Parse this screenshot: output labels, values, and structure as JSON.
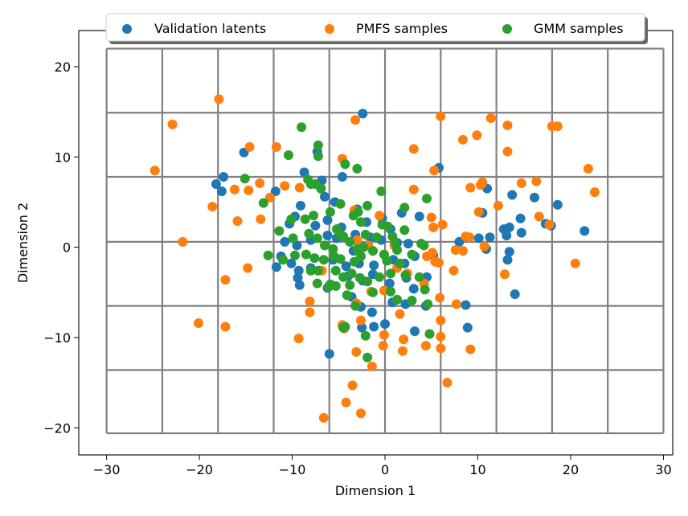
{
  "chart_data": {
    "type": "scatter",
    "title": "",
    "xlabel": "Dimension 1",
    "ylabel": "Dimension 2",
    "xlim": [
      -33,
      31
    ],
    "ylim": [
      -23,
      24
    ],
    "xticks": [
      -30,
      -20,
      -10,
      0,
      10,
      20,
      30
    ],
    "yticks": [
      -20,
      -10,
      0,
      10,
      20
    ],
    "grid": true,
    "grid_color": "#808080",
    "grid_vlines": [
      -30,
      -24,
      -18,
      -12,
      -6,
      0,
      6,
      12,
      18,
      24,
      30
    ],
    "grid_hlines": [
      -20.6,
      -13.6,
      -6.5,
      0.6,
      7.8,
      14.9,
      22.0
    ],
    "legend_position": "top-center",
    "legend": [
      "Validation latents",
      "PMFS samples",
      "GMM samples"
    ],
    "series": [
      {
        "name": "Validation latents",
        "color": "#1f77b4",
        "points": [
          [
            -2.4,
            14.8
          ],
          [
            -15.2,
            10.5
          ],
          [
            -7.3,
            10.6
          ],
          [
            -17.4,
            7.8
          ],
          [
            -18.2,
            7.0
          ],
          [
            -17.6,
            6.2
          ],
          [
            -11.8,
            6.2
          ],
          [
            -8.7,
            8.3
          ],
          [
            -6.8,
            7.4
          ],
          [
            -4.6,
            7.8
          ],
          [
            -6.5,
            5.6
          ],
          [
            -6.9,
            6.5
          ],
          [
            -5.4,
            5.0
          ],
          [
            -9.1,
            4.6
          ],
          [
            -9.7,
            3.4
          ],
          [
            -10.3,
            2.6
          ],
          [
            -7.5,
            2.4
          ],
          [
            -6.2,
            3.0
          ],
          [
            -4.7,
            2.2
          ],
          [
            -3.0,
            4.2
          ],
          [
            -2.0,
            2.8
          ],
          [
            -0.3,
            3.2
          ],
          [
            0.6,
            2.0
          ],
          [
            1.8,
            3.8
          ],
          [
            3.7,
            3.4
          ],
          [
            -10.8,
            0.6
          ],
          [
            -9.5,
            0.2
          ],
          [
            -8.0,
            0.8
          ],
          [
            -6.2,
            1.3
          ],
          [
            -5.2,
            1.0
          ],
          [
            -3.2,
            1.4
          ],
          [
            -1.6,
            1.1
          ],
          [
            -0.4,
            0.8
          ],
          [
            1.3,
            0.5
          ],
          [
            2.5,
            0.4
          ],
          [
            -11.2,
            -1.0
          ],
          [
            -10.1,
            -1.8
          ],
          [
            -9.3,
            -2.6
          ],
          [
            -8.0,
            -2.3
          ],
          [
            -5.6,
            -1.4
          ],
          [
            -4.2,
            -2.1
          ],
          [
            -2.8,
            -1.8
          ],
          [
            -1.2,
            -2.0
          ],
          [
            0.9,
            -1.4
          ],
          [
            2.1,
            -1.8
          ],
          [
            3.2,
            -1.0
          ],
          [
            -11.7,
            -2.2
          ],
          [
            -9.4,
            -3.4
          ],
          [
            -9.2,
            -4.2
          ],
          [
            -6.2,
            -4.5
          ],
          [
            -4.0,
            -3.2
          ],
          [
            -2.4,
            -3.7
          ],
          [
            -1.3,
            -3.0
          ],
          [
            0.5,
            -4.0
          ],
          [
            2.3,
            -3.4
          ],
          [
            4.5,
            -3.3
          ],
          [
            -3.6,
            -5.5
          ],
          [
            -2.6,
            -6.6
          ],
          [
            -1.4,
            -7.2
          ],
          [
            0.8,
            -6.1
          ],
          [
            2.2,
            -6.3
          ],
          [
            3.1,
            -4.6
          ],
          [
            -2.5,
            -8.9
          ],
          [
            -1.2,
            -8.8
          ],
          [
            0.0,
            -8.5
          ],
          [
            3.2,
            -9.3
          ],
          [
            -6.0,
            -11.8
          ],
          [
            5.8,
            8.8
          ],
          [
            8.7,
            -6.4
          ],
          [
            8.9,
            -8.9
          ],
          [
            8.0,
            0.6
          ],
          [
            10.1,
            1.0
          ],
          [
            10.5,
            3.8
          ],
          [
            11.0,
            6.5
          ],
          [
            11.3,
            1.1
          ],
          [
            12.8,
            2.0
          ],
          [
            13.1,
            1.3
          ],
          [
            13.4,
            2.2
          ],
          [
            13.7,
            5.8
          ],
          [
            14.6,
            3.2
          ],
          [
            14.7,
            1.6
          ],
          [
            14.0,
            -5.2
          ],
          [
            16.1,
            5.5
          ],
          [
            17.3,
            2.6
          ],
          [
            17.9,
            2.4
          ],
          [
            18.6,
            4.7
          ],
          [
            21.5,
            1.8
          ],
          [
            10.9,
            -0.2
          ],
          [
            13.4,
            -0.5
          ],
          [
            13.2,
            -1.4
          ],
          [
            -2.8,
            0.2
          ],
          [
            4.4,
            -6.5
          ],
          [
            5.2,
            -0.9
          ],
          [
            -3.4,
            -0.4
          ]
        ]
      },
      {
        "name": "PMFS samples",
        "color": "#ff7f0e",
        "points": [
          [
            -17.9,
            16.4
          ],
          [
            -22.9,
            13.6
          ],
          [
            -14.6,
            11.1
          ],
          [
            -11.7,
            11.1
          ],
          [
            -24.8,
            8.5
          ],
          [
            -18.6,
            4.5
          ],
          [
            -16.2,
            6.4
          ],
          [
            -14.7,
            6.3
          ],
          [
            -13.5,
            7.1
          ],
          [
            -12.4,
            5.5
          ],
          [
            -10.8,
            6.8
          ],
          [
            -9.2,
            6.6
          ],
          [
            -15.9,
            2.9
          ],
          [
            -13.4,
            3.1
          ],
          [
            -21.8,
            0.6
          ],
          [
            -14.8,
            -2.3
          ],
          [
            -17.2,
            -3.6
          ],
          [
            -20.1,
            -8.4
          ],
          [
            -17.2,
            -8.8
          ],
          [
            -9.3,
            -10.1
          ],
          [
            -8.1,
            -6.0
          ],
          [
            -8.1,
            -7.2
          ],
          [
            -4.6,
            9.8
          ],
          [
            -3.2,
            14.1
          ],
          [
            -0.6,
            3.5
          ],
          [
            1.0,
            0.2
          ],
          [
            1.3,
            -2.3
          ],
          [
            2.4,
            -2.9
          ],
          [
            3.1,
            10.9
          ],
          [
            3.1,
            6.4
          ],
          [
            5.0,
            3.3
          ],
          [
            5.2,
            2.2
          ],
          [
            6.2,
            2.5
          ],
          [
            6.0,
            14.5
          ],
          [
            9.9,
            12.4
          ],
          [
            11.4,
            14.3
          ],
          [
            13.2,
            13.5
          ],
          [
            13.2,
            10.6
          ],
          [
            5.3,
            8.5
          ],
          [
            8.4,
            11.9
          ],
          [
            10.3,
            6.9
          ],
          [
            10.5,
            7.2
          ],
          [
            9.2,
            6.6
          ],
          [
            10.1,
            3.9
          ],
          [
            12.2,
            4.6
          ],
          [
            8.7,
            1.2
          ],
          [
            9.1,
            1.1
          ],
          [
            10.7,
            0.1
          ],
          [
            7.6,
            -0.3
          ],
          [
            8.4,
            -0.4
          ],
          [
            7.4,
            -2.6
          ],
          [
            12.9,
            -3.0
          ],
          [
            14.7,
            7.1
          ],
          [
            16.3,
            7.3
          ],
          [
            16.6,
            3.4
          ],
          [
            17.7,
            2.5
          ],
          [
            18.0,
            13.4
          ],
          [
            18.6,
            13.4
          ],
          [
            21.9,
            8.7
          ],
          [
            22.6,
            6.1
          ],
          [
            20.5,
            -1.8
          ],
          [
            4.5,
            -1.0
          ],
          [
            5.1,
            -0.6
          ],
          [
            5.4,
            -1.6
          ],
          [
            5.8,
            -1.7
          ],
          [
            4.2,
            -4.0
          ],
          [
            5.9,
            -5.6
          ],
          [
            7.7,
            -6.3
          ],
          [
            6.0,
            -8.1
          ],
          [
            6.0,
            -9.9
          ],
          [
            6.0,
            -11.2
          ],
          [
            4.4,
            -10.9
          ],
          [
            2.0,
            -10.2
          ],
          [
            1.9,
            -11.5
          ],
          [
            1.6,
            -7.4
          ],
          [
            -0.1,
            -4.8
          ],
          [
            -1.5,
            -4.9
          ],
          [
            -3.1,
            -6.2
          ],
          [
            -2.6,
            -8.1
          ],
          [
            -4.6,
            -8.6
          ],
          [
            -4.4,
            -9.0
          ],
          [
            -0.1,
            -9.7
          ],
          [
            -0.2,
            -10.9
          ],
          [
            -1.4,
            -13.2
          ],
          [
            -3.1,
            -11.6
          ],
          [
            -3.5,
            -15.3
          ],
          [
            -4.2,
            -17.2
          ],
          [
            -2.6,
            -18.4
          ],
          [
            -6.6,
            -18.9
          ],
          [
            6.7,
            -15.0
          ],
          [
            9.2,
            -11.3
          ],
          [
            -6.8,
            -2.6
          ],
          [
            -3.3,
            4.1
          ],
          [
            -3.0,
            0.8
          ],
          [
            -1.8,
            0.2
          ]
        ]
      },
      {
        "name": "GMM samples",
        "color": "#2ca02c",
        "points": [
          [
            -9.0,
            13.3
          ],
          [
            -7.2,
            11.3
          ],
          [
            -10.4,
            10.2
          ],
          [
            -7.2,
            10.1
          ],
          [
            -15.1,
            7.6
          ],
          [
            -8.3,
            7.5
          ],
          [
            -8.0,
            7.0
          ],
          [
            -7.5,
            7.0
          ],
          [
            -6.9,
            6.5
          ],
          [
            -4.3,
            9.2
          ],
          [
            -3.0,
            8.7
          ],
          [
            -0.4,
            6.2
          ],
          [
            -13.1,
            4.9
          ],
          [
            -10.1,
            3.1
          ],
          [
            -7.7,
            3.5
          ],
          [
            -5.9,
            3.9
          ],
          [
            -4.8,
            4.8
          ],
          [
            -3.4,
            3.5
          ],
          [
            -2.9,
            3.9
          ],
          [
            -2.6,
            2.8
          ],
          [
            -1.9,
            4.6
          ],
          [
            -0.3,
            2.5
          ],
          [
            0.3,
            2.3
          ],
          [
            2.1,
            4.4
          ],
          [
            4.5,
            5.4
          ],
          [
            -11.4,
            1.8
          ],
          [
            -9.9,
            1.0
          ],
          [
            -8.2,
            1.5
          ],
          [
            -7.3,
            1.0
          ],
          [
            -5.2,
            2.0
          ],
          [
            -4.5,
            1.2
          ],
          [
            -3.8,
            0.6
          ],
          [
            -2.1,
            1.4
          ],
          [
            -0.9,
            1.1
          ],
          [
            0.8,
            1.2
          ],
          [
            2.1,
            1.9
          ],
          [
            3.9,
            0.4
          ],
          [
            -12.6,
            -0.9
          ],
          [
            -11.0,
            -1.4
          ],
          [
            -9.7,
            -0.9
          ],
          [
            -8.5,
            -0.8
          ],
          [
            -7.6,
            -1.2
          ],
          [
            -6.6,
            -1.4
          ],
          [
            -5.5,
            -1.0
          ],
          [
            -4.8,
            -1.3
          ],
          [
            -3.3,
            -1.6
          ],
          [
            -2.6,
            -1.0
          ],
          [
            -1.3,
            -0.4
          ],
          [
            -0.1,
            -0.8
          ],
          [
            1.3,
            -0.3
          ],
          [
            2.9,
            -0.8
          ],
          [
            4.2,
            0.2
          ],
          [
            -8.0,
            -2.6
          ],
          [
            -7.2,
            -2.6
          ],
          [
            -5.3,
            -2.6
          ],
          [
            -4.5,
            -3.3
          ],
          [
            -3.6,
            -2.9
          ],
          [
            -2.7,
            -3.4
          ],
          [
            -1.9,
            -3.8
          ],
          [
            -0.6,
            -3.3
          ],
          [
            0.6,
            -2.9
          ],
          [
            2.2,
            -3.1
          ],
          [
            3.7,
            -3.3
          ],
          [
            -7.3,
            -4.0
          ],
          [
            -6.1,
            -4.4
          ],
          [
            -5.3,
            -4.3
          ],
          [
            -3.8,
            -4.2
          ],
          [
            -1.3,
            -5.0
          ],
          [
            0.6,
            -4.9
          ],
          [
            1.3,
            -5.8
          ],
          [
            2.9,
            -5.9
          ],
          [
            4.3,
            -4.7
          ],
          [
            -3.2,
            -6.5
          ],
          [
            -4.3,
            -8.8
          ],
          [
            -2.1,
            -9.8
          ],
          [
            4.6,
            -6.3
          ],
          [
            4.8,
            -9.6
          ],
          [
            -4.5,
            -8.9
          ],
          [
            -1.9,
            -12.2
          ],
          [
            -5.9,
            -4.1
          ],
          [
            -4.1,
            -5.3
          ],
          [
            -4.9,
            1.5
          ],
          [
            -2.3,
            0.0
          ],
          [
            -8.6,
            3.1
          ],
          [
            1.6,
            -1.8
          ],
          [
            -6.5,
            0.2
          ],
          [
            -5.6,
            -0.2
          ],
          [
            -3.0,
            -0.2
          ],
          [
            0.2,
            -1.5
          ],
          [
            1.1,
            0.5
          ]
        ]
      }
    ]
  }
}
